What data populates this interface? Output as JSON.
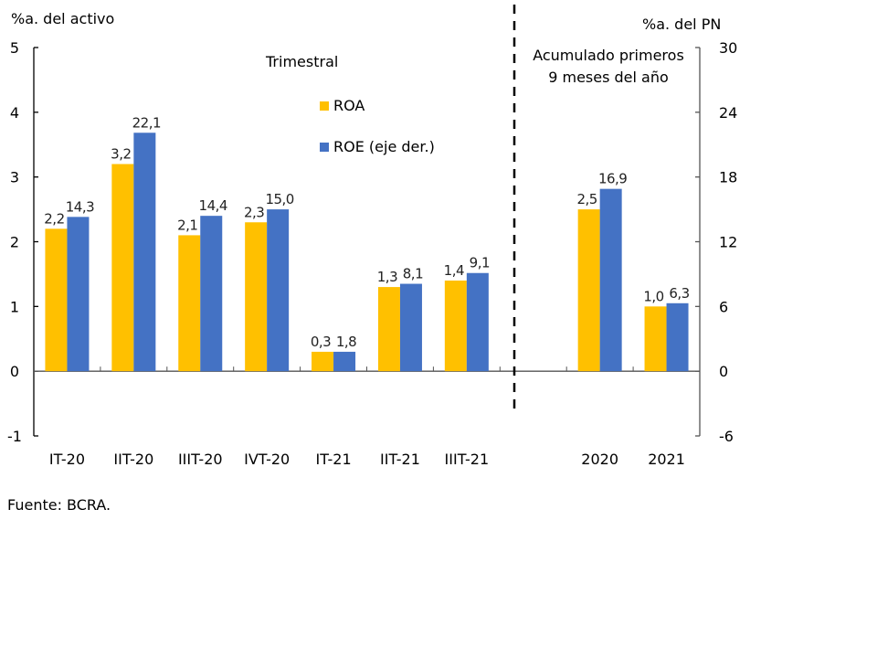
{
  "chart_data": {
    "type": "bar",
    "left_axis_label": "%a. del activo",
    "right_axis_label": "%a. del PN",
    "left_ylim": [
      -1,
      5
    ],
    "left_ticks": [
      -1,
      0,
      1,
      2,
      3,
      4,
      5
    ],
    "right_ylim": [
      -6,
      30
    ],
    "right_ticks": [
      -6,
      0,
      6,
      12,
      18,
      24,
      30
    ],
    "categories": [
      "IT-20",
      "IIT-20",
      "IIIT-20",
      "IVT-20",
      "IT-21",
      "IIT-21",
      "IIIT-21",
      "",
      "2020",
      "2021"
    ],
    "section_labels": {
      "quarterly": "Trimestral",
      "cumulative_line1": "Acumulado primeros",
      "cumulative_line2": "9 meses del año"
    },
    "series": [
      {
        "name": "ROA",
        "axis": "left",
        "color": "#FFC000",
        "values": [
          2.2,
          3.2,
          2.1,
          2.3,
          0.3,
          1.3,
          1.4,
          null,
          2.5,
          1.0
        ],
        "labels": [
          "2,2",
          "3,2",
          "2,1",
          "2,3",
          "0,3",
          "1,3",
          "1,4",
          null,
          "2,5",
          "1,0"
        ]
      },
      {
        "name": "ROE (eje der.)",
        "axis": "right",
        "color": "#4472C4",
        "values": [
          14.3,
          22.1,
          14.4,
          15.0,
          1.8,
          8.1,
          9.1,
          null,
          16.9,
          6.3
        ],
        "labels": [
          "14,3",
          "22,1",
          "14,4",
          "15,0",
          "1,8",
          "8,1",
          "9,1",
          null,
          "16,9",
          "6,3"
        ]
      }
    ],
    "legend": [
      "ROA",
      "ROE (eje der.)"
    ],
    "legend_position": "top-center",
    "grid": false
  },
  "source": "Fuente: BCRA."
}
